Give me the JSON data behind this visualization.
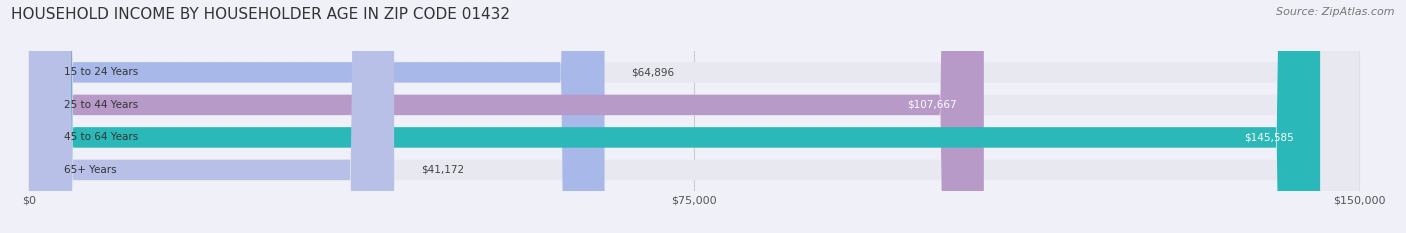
{
  "title": "HOUSEHOLD INCOME BY HOUSEHOLDER AGE IN ZIP CODE 01432",
  "source": "Source: ZipAtlas.com",
  "categories": [
    "15 to 24 Years",
    "25 to 44 Years",
    "45 to 64 Years",
    "65+ Years"
  ],
  "values": [
    64896,
    107667,
    145585,
    41172
  ],
  "bar_colors": [
    "#a8b8e8",
    "#b89ac8",
    "#2ab8b8",
    "#b8c0e8"
  ],
  "bar_labels": [
    "$64,896",
    "$107,667",
    "$145,585",
    "$41,172"
  ],
  "label_colors": [
    "#444444",
    "#ffffff",
    "#ffffff",
    "#444444"
  ],
  "xmax": 150000,
  "xticks": [
    0,
    75000,
    150000
  ],
  "xticklabels": [
    "$0",
    "$75,000",
    "$150,000"
  ],
  "background_color": "#f0f0f8",
  "bar_bg_color": "#e8e8f0",
  "title_fontsize": 11,
  "source_fontsize": 8,
  "bar_height": 0.62,
  "figsize": [
    14.06,
    2.33
  ]
}
